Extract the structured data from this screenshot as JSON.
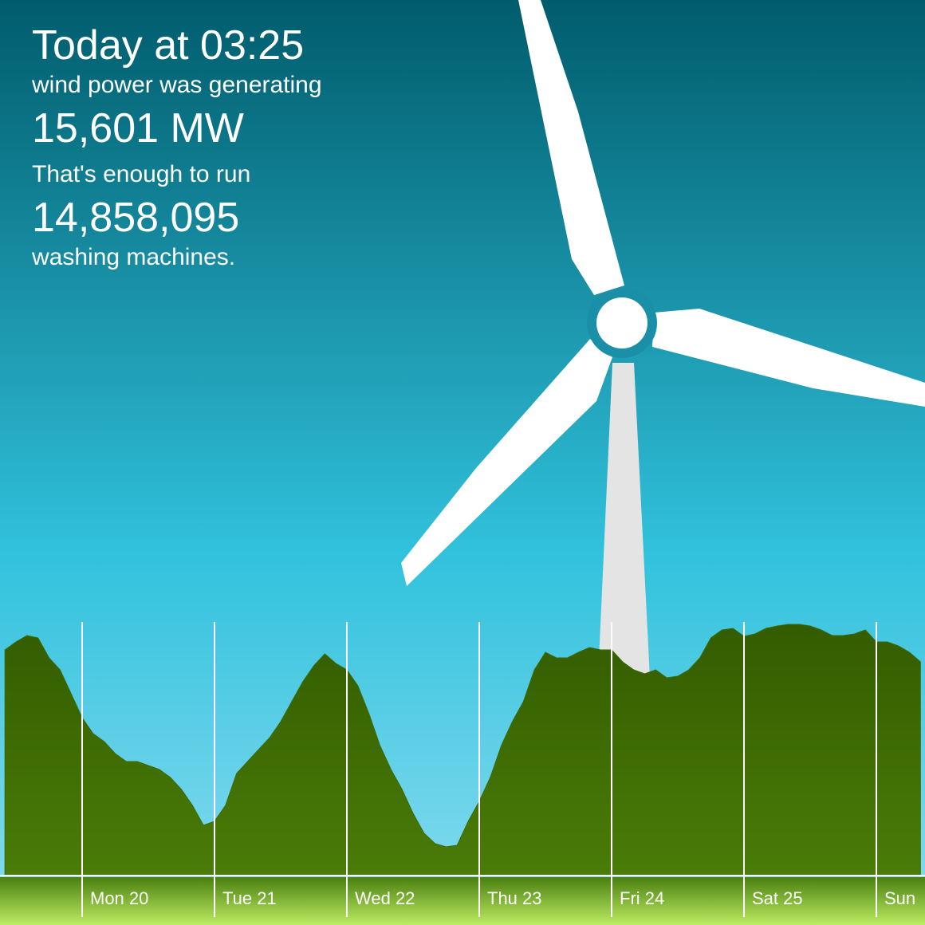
{
  "panel": {
    "title": "Today at 03:25",
    "line1": "wind power was generating",
    "power": "15,601 MW",
    "line2": "That's enough to run",
    "count": "14,858,095",
    "line3": "washing machines."
  },
  "chart_data": {
    "type": "area",
    "color": "#3d6a02",
    "categories": [
      null,
      null,
      null,
      null,
      null,
      null,
      null,
      "Mon 20",
      null,
      null,
      null,
      null,
      null,
      null,
      null,
      null,
      null,
      null,
      null,
      "Tue 21",
      null,
      null,
      null,
      null,
      null,
      null,
      null,
      null,
      null,
      null,
      null,
      "Wed 22",
      null,
      null,
      null,
      null,
      null,
      null,
      null,
      null,
      null,
      null,
      null,
      "Thu 23",
      null,
      null,
      null,
      null,
      null,
      null,
      null,
      null,
      null,
      null,
      null,
      "Fri 24",
      null,
      null,
      null,
      null,
      null,
      null,
      null,
      null,
      null,
      null,
      null,
      "Sat 25",
      null,
      null,
      null,
      null,
      null,
      null,
      null,
      null,
      null,
      null,
      null,
      "Sun",
      null,
      null,
      null,
      null
    ],
    "values": [
      14150,
      14650,
      15050,
      14900,
      13650,
      12900,
      11400,
      9900,
      8900,
      8400,
      7650,
      7150,
      7150,
      6900,
      6650,
      6150,
      5400,
      4400,
      3150,
      3400,
      4400,
      6400,
      7150,
      7900,
      8650,
      9650,
      10900,
      12150,
      13150,
      13900,
      13300,
      12900,
      11900,
      10150,
      8150,
      6650,
      5400,
      3900,
      2650,
      2000,
      1800,
      1900,
      3400,
      4650,
      6150,
      8150,
      9650,
      10900,
      12900,
      14000,
      13650,
      13650,
      14000,
      14300,
      14150,
      14150,
      13400,
      12900,
      12650,
      12900,
      12400,
      12500,
      12900,
      13650,
      14900,
      15400,
      15500,
      15000,
      15150,
      15500,
      15650,
      15750,
      15750,
      15650,
      15400,
      15050,
      15050,
      15150,
      15400,
      14650,
      14650,
      14400,
      14000,
      13400
    ],
    "ylim": [
      0,
      16900
    ]
  }
}
